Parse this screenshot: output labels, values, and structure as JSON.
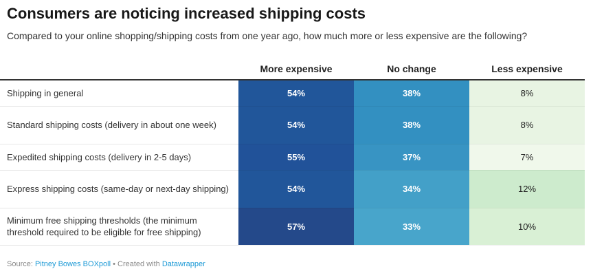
{
  "title": "Consumers are noticing increased shipping costs",
  "subtitle": "Compared to your online shopping/shipping costs from one year ago, how much more or less expensive are the following?",
  "chart_data": {
    "type": "table",
    "columns": [
      "",
      "More expensive",
      "No change",
      "Less expensive"
    ],
    "rows": [
      {
        "label": "Shipping in general",
        "values": [
          "54%",
          "38%",
          "8%"
        ],
        "colors": [
          "#21569a",
          "#3390c1",
          "#e8f4e3"
        ]
      },
      {
        "label": "Standard shipping costs (delivery in about one week)",
        "values": [
          "54%",
          "38%",
          "8%"
        ],
        "colors": [
          "#21569a",
          "#3390c1",
          "#e8f4e3"
        ]
      },
      {
        "label": "Expedited shipping costs (delivery in 2-5 days)",
        "values": [
          "55%",
          "37%",
          "7%"
        ],
        "colors": [
          "#215299",
          "#3894c3",
          "#f0f8eb"
        ]
      },
      {
        "label": "Express shipping costs (same-day or next-day shipping)",
        "values": [
          "54%",
          "34%",
          "12%"
        ],
        "colors": [
          "#21569a",
          "#43a0c8",
          "#cdebcd"
        ]
      },
      {
        "label": "Minimum free shipping thresholds (the minimum threshold required to be eligible for free shipping)",
        "values": [
          "57%",
          "33%",
          "10%"
        ],
        "colors": [
          "#24498a",
          "#48a5cb",
          "#d9f0d5"
        ]
      }
    ]
  },
  "footer": {
    "source_label": "Source: ",
    "source": "Pitney Bowes BOXpoll",
    "sep": " • Created with ",
    "tool": "Datawrapper"
  }
}
